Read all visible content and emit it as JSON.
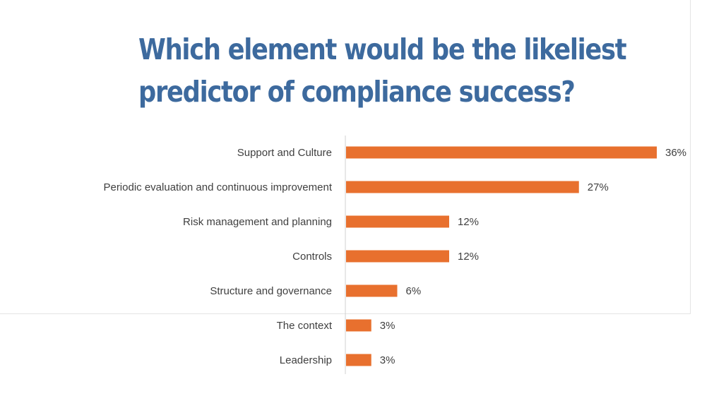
{
  "chart_data": {
    "type": "bar",
    "orientation": "horizontal",
    "title_lines": [
      "Which element would be the likeliest",
      "predictor of compliance success?"
    ],
    "categories": [
      "Support and Culture",
      "Periodic evaluation and continuous improvement",
      "Risk management and planning",
      "Controls",
      "Structure and governance",
      "The context",
      "Leadership"
    ],
    "values": [
      36,
      27,
      12,
      12,
      6,
      3,
      3
    ],
    "value_labels": [
      "36%",
      "27%",
      "12%",
      "12%",
      "6%",
      "3%",
      "3%"
    ],
    "value_suffix": "%",
    "xlim": [
      0,
      36
    ],
    "grid": false,
    "legend": "none",
    "bar_color": "#e8702e",
    "axis_color": "#d0d0d0",
    "title_color": "#3d6a9e"
  }
}
